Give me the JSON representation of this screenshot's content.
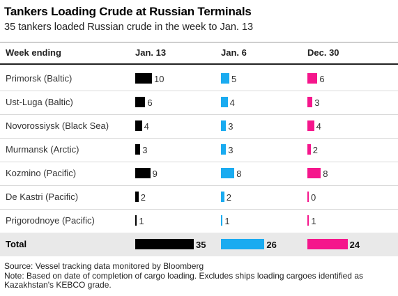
{
  "chart_data": {
    "type": "table",
    "title": "Tankers Loading Crude at Russian Terminals",
    "subtitle": "35 tankers loaded Russian crude in the week to Jan. 13",
    "row_header": "Week ending",
    "columns": [
      {
        "label": "Jan. 13",
        "color": "#000000"
      },
      {
        "label": "Jan. 6",
        "color": "#1aabf0"
      },
      {
        "label": "Dec. 30",
        "color": "#f5168c"
      }
    ],
    "rows": [
      {
        "terminal": "Primorsk (Baltic)",
        "values": [
          10,
          5,
          6
        ]
      },
      {
        "terminal": "Ust-Luga (Baltic)",
        "values": [
          6,
          4,
          3
        ]
      },
      {
        "terminal": "Novorossiysk (Black Sea)",
        "values": [
          4,
          3,
          4
        ]
      },
      {
        "terminal": "Murmansk (Arctic)",
        "values": [
          3,
          3,
          2
        ]
      },
      {
        "terminal": "Kozmino (Pacific)",
        "values": [
          9,
          8,
          8
        ]
      },
      {
        "terminal": "De Kastri (Pacific)",
        "values": [
          2,
          2,
          0
        ]
      },
      {
        "terminal": "Prigorodnoye (Pacific)",
        "values": [
          1,
          1,
          1
        ]
      }
    ],
    "total": {
      "terminal": "Total",
      "values": [
        35,
        26,
        24
      ]
    },
    "source": "Source: Vessel tracking data monitored by Bloomberg",
    "note_lines": [
      "Note: Based on date of completion of cargo loading. Excludes ships loading cargoes identified as",
      "Kazakhstan's KEBCO grade."
    ]
  }
}
